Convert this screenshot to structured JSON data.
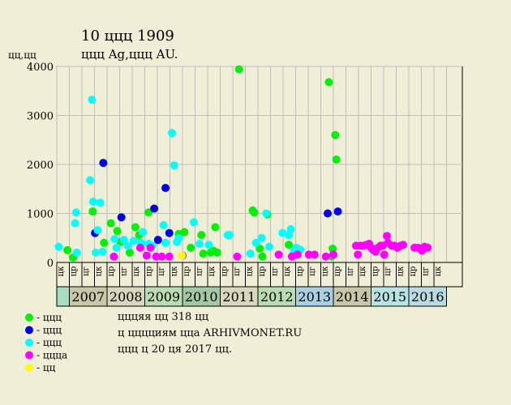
{
  "chart_data": {
    "type": "scatter",
    "title": "10 ццц 1909",
    "subtitle": "ццц Ag,ццц AU.",
    "ylabel": "цц,цц",
    "ylim": [
      0,
      4000
    ],
    "yticks": [
      0,
      1000,
      2000,
      3000,
      4000
    ],
    "grid": true,
    "watermark": "arhivmonet.ru",
    "years": [
      {
        "label": "2007",
        "color": "#c8c8a8"
      },
      {
        "label": "2008",
        "color": "#d7d7bb"
      },
      {
        "label": "2009",
        "color": "#b9dcb3"
      },
      {
        "label": "2010",
        "color": "#a3c8a3"
      },
      {
        "label": "2011",
        "color": "#d7d7bb"
      },
      {
        "label": "2012",
        "color": "#b9dcb3"
      },
      {
        "label": "2013",
        "color": "#a9cfe3"
      },
      {
        "label": "2014",
        "color": "#c8c8a8"
      },
      {
        "label": "2015",
        "color": "#b9e3e3"
      },
      {
        "label": "2016",
        "color": "#b9dce3"
      }
    ],
    "first_band_color": "#a7dcc2",
    "quarter_labels": [
      "цк",
      "цр",
      "цг",
      "цк",
      "цр",
      "цг",
      "цк",
      "цр",
      "цг",
      "цк",
      "цр",
      "цг",
      "цк",
      "цр",
      "цг",
      "цк",
      "цр",
      "цг",
      "цк",
      "цр",
      "цг",
      "цк",
      "цр",
      "цг",
      "цк",
      "цр",
      "цг",
      "цк",
      "цр",
      "цг",
      "цк"
    ],
    "x_unit": "year",
    "xlim": [
      2006.4,
      2016.75
    ],
    "series": [
      {
        "name": "ццц",
        "color": "#00ee00",
        "points": [
          [
            2006.95,
            250
          ],
          [
            2007.1,
            100
          ],
          [
            2007.62,
            1040
          ],
          [
            2007.92,
            400
          ],
          [
            2008.1,
            800
          ],
          [
            2008.27,
            640
          ],
          [
            2008.36,
            420
          ],
          [
            2008.6,
            200
          ],
          [
            2008.75,
            720
          ],
          [
            2008.85,
            560
          ],
          [
            2009.1,
            1020
          ],
          [
            2009.9,
            580
          ],
          [
            2010.05,
            620
          ],
          [
            2010.22,
            300
          ],
          [
            2010.5,
            560
          ],
          [
            2010.55,
            180
          ],
          [
            2010.75,
            200
          ],
          [
            2010.82,
            240
          ],
          [
            2010.87,
            720
          ],
          [
            2010.92,
            200
          ],
          [
            2011.5,
            3940
          ],
          [
            2011.86,
            1060
          ],
          [
            2011.9,
            1020
          ],
          [
            2012.05,
            280
          ],
          [
            2012.12,
            120
          ],
          [
            2012.25,
            980
          ],
          [
            2012.82,
            360
          ],
          [
            2013.88,
            3680
          ],
          [
            2013.95,
            120
          ],
          [
            2013.98,
            280
          ],
          [
            2014.05,
            2600
          ],
          [
            2014.08,
            2100
          ]
        ]
      },
      {
        "name": "ццц",
        "color": "#0000dd",
        "points": [
          [
            2007.68,
            600
          ],
          [
            2007.9,
            2030
          ],
          [
            2008.38,
            920
          ],
          [
            2009.25,
            1100
          ],
          [
            2009.35,
            460
          ],
          [
            2009.55,
            1520
          ],
          [
            2009.65,
            600
          ],
          [
            2013.85,
            1000
          ],
          [
            2014.12,
            1040
          ]
        ]
      },
      {
        "name": "ццц",
        "color": "#00ffff",
        "points": [
          [
            2006.45,
            380
          ],
          [
            2006.5,
            300
          ],
          [
            2006.55,
            800
          ],
          [
            2006.6,
            380
          ],
          [
            2006.72,
            320
          ],
          [
            2007.15,
            800
          ],
          [
            2007.18,
            1020
          ],
          [
            2007.2,
            200
          ],
          [
            2007.55,
            1680
          ],
          [
            2007.6,
            3320
          ],
          [
            2007.63,
            1240
          ],
          [
            2007.7,
            200
          ],
          [
            2007.75,
            660
          ],
          [
            2007.82,
            1220
          ],
          [
            2007.88,
            220
          ],
          [
            2008.2,
            480
          ],
          [
            2008.25,
            300
          ],
          [
            2008.45,
            460
          ],
          [
            2008.55,
            340
          ],
          [
            2008.7,
            440
          ],
          [
            2008.9,
            400
          ],
          [
            2008.95,
            620
          ],
          [
            2009.1,
            380
          ],
          [
            2009.2,
            340
          ],
          [
            2009.5,
            760
          ],
          [
            2009.55,
            400
          ],
          [
            2009.72,
            2640
          ],
          [
            2009.78,
            1980
          ],
          [
            2009.85,
            420
          ],
          [
            2009.9,
            500
          ],
          [
            2010.3,
            820
          ],
          [
            2010.45,
            380
          ],
          [
            2010.7,
            360
          ],
          [
            2011.2,
            560
          ],
          [
            2011.25,
            560
          ],
          [
            2011.8,
            180
          ],
          [
            2011.95,
            400
          ],
          [
            2012.1,
            500
          ],
          [
            2012.22,
            1000
          ],
          [
            2012.3,
            320
          ],
          [
            2012.65,
            600
          ],
          [
            2012.82,
            560
          ],
          [
            2012.87,
            680
          ],
          [
            2012.95,
            220
          ],
          [
            2013.02,
            300
          ],
          [
            2013.12,
            260
          ]
        ]
      },
      {
        "name": "цццa",
        "color": "#ff00ff",
        "points": [
          [
            2008.18,
            120
          ],
          [
            2008.88,
            300
          ],
          [
            2009.05,
            140
          ],
          [
            2009.15,
            300
          ],
          [
            2009.3,
            120
          ],
          [
            2009.45,
            120
          ],
          [
            2009.65,
            120
          ],
          [
            2010.0,
            140
          ],
          [
            2011.45,
            120
          ],
          [
            2012.55,
            160
          ],
          [
            2012.9,
            120
          ],
          [
            2013.05,
            160
          ],
          [
            2013.35,
            160
          ],
          [
            2013.5,
            160
          ],
          [
            2013.8,
            120
          ],
          [
            2014.0,
            160
          ],
          [
            2014.6,
            340
          ],
          [
            2014.65,
            160
          ],
          [
            2014.72,
            340
          ],
          [
            2014.8,
            340
          ],
          [
            2014.88,
            360
          ],
          [
            2014.95,
            380
          ],
          [
            2015.0,
            300
          ],
          [
            2015.05,
            260
          ],
          [
            2015.12,
            220
          ],
          [
            2015.18,
            300
          ],
          [
            2015.25,
            340
          ],
          [
            2015.3,
            340
          ],
          [
            2015.35,
            160
          ],
          [
            2015.42,
            540
          ],
          [
            2015.45,
            400
          ],
          [
            2015.55,
            340
          ],
          [
            2015.62,
            340
          ],
          [
            2015.7,
            300
          ],
          [
            2015.78,
            340
          ],
          [
            2015.85,
            360
          ],
          [
            2016.15,
            300
          ],
          [
            2016.25,
            300
          ],
          [
            2016.35,
            240
          ],
          [
            2016.42,
            320
          ],
          [
            2016.5,
            300
          ]
        ]
      },
      {
        "name": "цц",
        "color": "#ffff00",
        "points": [
          [
            2009.98,
            140
          ]
        ]
      }
    ]
  },
  "notes": [
    "цццяя цц 318 цц",
    "ц цццциям ццa ARHIVMONET.RU",
    "ццц ц 20 ця 2017 цц."
  ]
}
